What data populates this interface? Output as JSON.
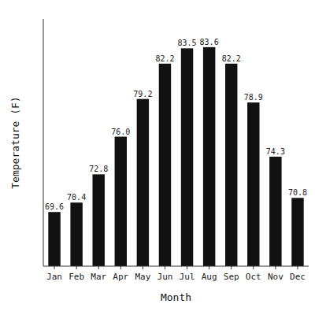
{
  "chart_data": {
    "type": "bar",
    "categories": [
      "Jan",
      "Feb",
      "Mar",
      "Apr",
      "May",
      "Jun",
      "Jul",
      "Aug",
      "Sep",
      "Oct",
      "Nov",
      "Dec"
    ],
    "values": [
      69.6,
      70.4,
      72.8,
      76.0,
      79.2,
      82.2,
      83.5,
      83.6,
      82.2,
      78.9,
      74.3,
      70.8
    ],
    "value_labels": [
      "69.6",
      "70.4",
      "72.8",
      "76.0",
      "79.2",
      "82.2",
      "83.5",
      "83.6",
      "82.2",
      "78.9",
      "74.3",
      "70.8"
    ],
    "color": "#111111",
    "x_label": "Month",
    "y_label": "Temperature (F)",
    "ylim": [
      65,
      86
    ],
    "data_labels": true,
    "tick_labels": "x",
    "grid": false
  }
}
